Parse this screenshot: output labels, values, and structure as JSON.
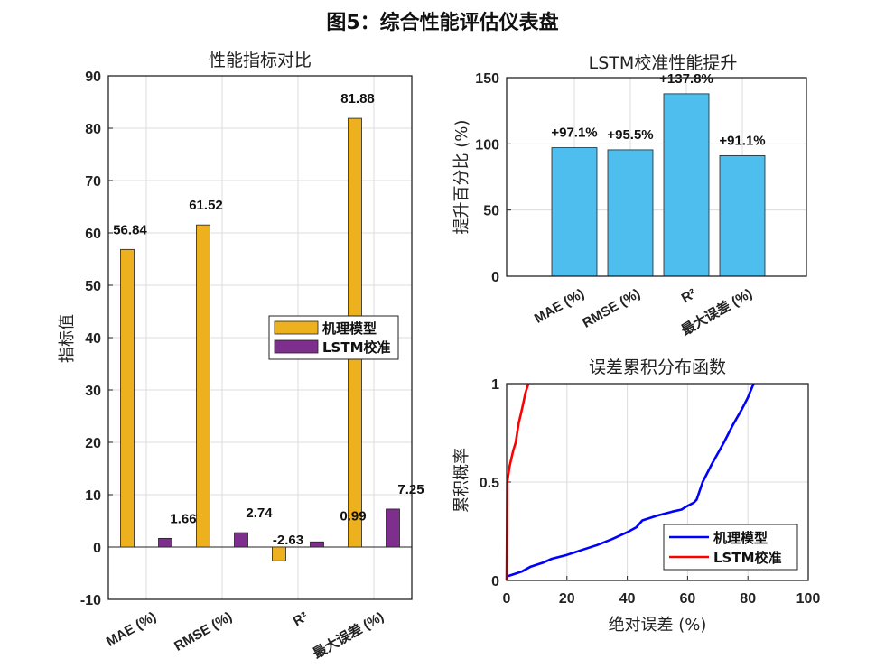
{
  "figure_title": "图5：综合性能评估仪表盘",
  "chart_data": [
    {
      "type": "bar",
      "title": "性能指标对比",
      "xlabel": "",
      "ylabel": "指标值",
      "categories": [
        "MAE (%)",
        "RMSE (%)",
        "R²",
        "最大误差 (%)"
      ],
      "series": [
        {
          "name": "机理模型",
          "values": [
            56.84,
            61.52,
            -2.63,
            81.88
          ],
          "color": "#EDB120"
        },
        {
          "name": "LSTM校准",
          "values": [
            1.66,
            2.74,
            0.99,
            7.25
          ],
          "color": "#7E2F8E"
        }
      ],
      "data_labels": [
        [
          "56.84",
          "61.52",
          "-2.63",
          "81.88"
        ],
        [
          "1.66",
          "2.74",
          "0.99",
          "7.25"
        ]
      ],
      "ylim": [
        -10,
        90
      ],
      "yticks": [
        "-10",
        "0",
        "10",
        "20",
        "30",
        "40",
        "50",
        "60",
        "70",
        "80",
        "90"
      ],
      "grid": true,
      "legend_position": "right"
    },
    {
      "type": "bar",
      "title": "LSTM校准性能提升",
      "xlabel": "",
      "ylabel": "提升百分比 (%)",
      "categories": [
        "MAE (%)",
        "RMSE (%)",
        "R²",
        "最大误差 (%)"
      ],
      "values": [
        97.1,
        95.5,
        137.8,
        91.1
      ],
      "data_labels": [
        "+97.1%",
        "+95.5%",
        "+137.8%",
        "+91.1%"
      ],
      "color": "#4DBEEE",
      "ylim": [
        0,
        150
      ],
      "yticks": [
        "0",
        "50",
        "100",
        "150"
      ],
      "grid": true
    },
    {
      "type": "line",
      "title": "误差累积分布函数",
      "xlabel": "绝对误差 (%)",
      "ylabel": "累积概率",
      "xlim": [
        0,
        100
      ],
      "ylim": [
        0,
        1
      ],
      "xticks": [
        "0",
        "20",
        "40",
        "60",
        "80",
        "100"
      ],
      "yticks": [
        "0",
        "0.5",
        "1"
      ],
      "grid": true,
      "legend_position": "bottom-right",
      "series": [
        {
          "name": "机理模型",
          "color": "#0000FF",
          "x": [
            0,
            2,
            5,
            8,
            12,
            15,
            20,
            25,
            30,
            35,
            40,
            43,
            45,
            50,
            55,
            58,
            59.5,
            62,
            63,
            65,
            68,
            72,
            75,
            78,
            80,
            81.9
          ],
          "y": [
            0.02,
            0.03,
            0.045,
            0.07,
            0.09,
            0.11,
            0.13,
            0.155,
            0.18,
            0.21,
            0.245,
            0.27,
            0.305,
            0.33,
            0.35,
            0.36,
            0.375,
            0.395,
            0.41,
            0.5,
            0.59,
            0.7,
            0.79,
            0.87,
            0.93,
            1.0
          ]
        },
        {
          "name": "LSTM校准",
          "color": "#FF0000",
          "x": [
            0,
            0.2,
            0.6,
            1.0,
            1.6,
            2.2,
            3.0,
            3.5,
            4.0,
            4.8,
            5.5,
            6.2,
            6.8,
            7.25
          ],
          "y": [
            0.0,
            0.5,
            0.54,
            0.58,
            0.62,
            0.66,
            0.7,
            0.75,
            0.8,
            0.85,
            0.9,
            0.95,
            0.98,
            1.0
          ]
        }
      ]
    }
  ]
}
